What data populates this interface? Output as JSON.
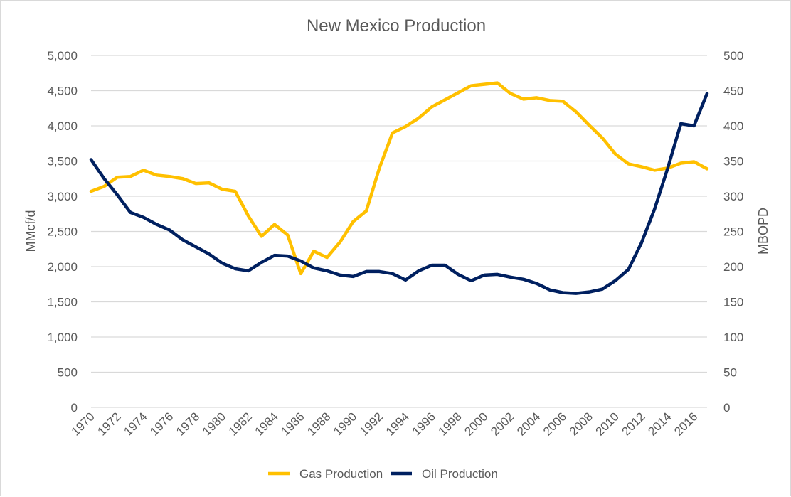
{
  "chart_data": {
    "type": "line",
    "title": "New Mexico Production",
    "ylabel": "MMcf/d",
    "y2label": "MBOPD",
    "ylim": [
      0,
      5000
    ],
    "y2lim": [
      0,
      500
    ],
    "yticks": [
      "0",
      "500",
      "1,000",
      "1,500",
      "2,000",
      "2,500",
      "3,000",
      "3,500",
      "4,000",
      "4,500",
      "5,000"
    ],
    "y2ticks": [
      "0",
      "50",
      "100",
      "150",
      "200",
      "250",
      "300",
      "350",
      "400",
      "450",
      "500"
    ],
    "xticks": [
      "1970",
      "1972",
      "1974",
      "1976",
      "1978",
      "1980",
      "1982",
      "1984",
      "1986",
      "1988",
      "1990",
      "1992",
      "1994",
      "1996",
      "1998",
      "2000",
      "2002",
      "2004",
      "2006",
      "2008",
      "2010",
      "2012",
      "2014",
      "2016"
    ],
    "x": [
      1970,
      1971,
      1972,
      1973,
      1974,
      1975,
      1976,
      1977,
      1978,
      1979,
      1980,
      1981,
      1982,
      1983,
      1984,
      1985,
      1986,
      1987,
      1988,
      1989,
      1990,
      1991,
      1992,
      1993,
      1994,
      1995,
      1996,
      1997,
      1998,
      1999,
      2000,
      2001,
      2002,
      2003,
      2004,
      2005,
      2006,
      2007,
      2008,
      2009,
      2010,
      2011,
      2012,
      2013,
      2014,
      2015,
      2016,
      2017
    ],
    "grid": true,
    "legend": "bottom",
    "series": [
      {
        "name": "Gas Production",
        "axis": "left",
        "color": "#FFC000",
        "values": [
          3070,
          3140,
          3270,
          3280,
          3370,
          3300,
          3280,
          3250,
          3180,
          3190,
          3100,
          3070,
          2720,
          2430,
          2600,
          2450,
          1900,
          2220,
          2130,
          2350,
          2640,
          2790,
          3400,
          3900,
          3990,
          4110,
          4270,
          4370,
          4470,
          4570,
          4590,
          4610,
          4460,
          4380,
          4400,
          4360,
          4350,
          4200,
          4010,
          3830,
          3600,
          3460,
          3420,
          3370,
          3400,
          3470,
          3490,
          3390
        ]
      },
      {
        "name": "Oil Production",
        "axis": "right",
        "color": "#002060",
        "values": [
          352,
          325,
          302,
          277,
          270,
          260,
          252,
          238,
          228,
          218,
          205,
          197,
          194,
          206,
          216,
          215,
          208,
          198,
          194,
          188,
          186,
          193,
          193,
          190,
          181,
          194,
          202,
          202,
          189,
          180,
          188,
          189,
          185,
          182,
          176,
          167,
          163,
          162,
          164,
          168,
          180,
          196,
          234,
          282,
          340,
          403,
          400,
          446
        ]
      }
    ]
  }
}
